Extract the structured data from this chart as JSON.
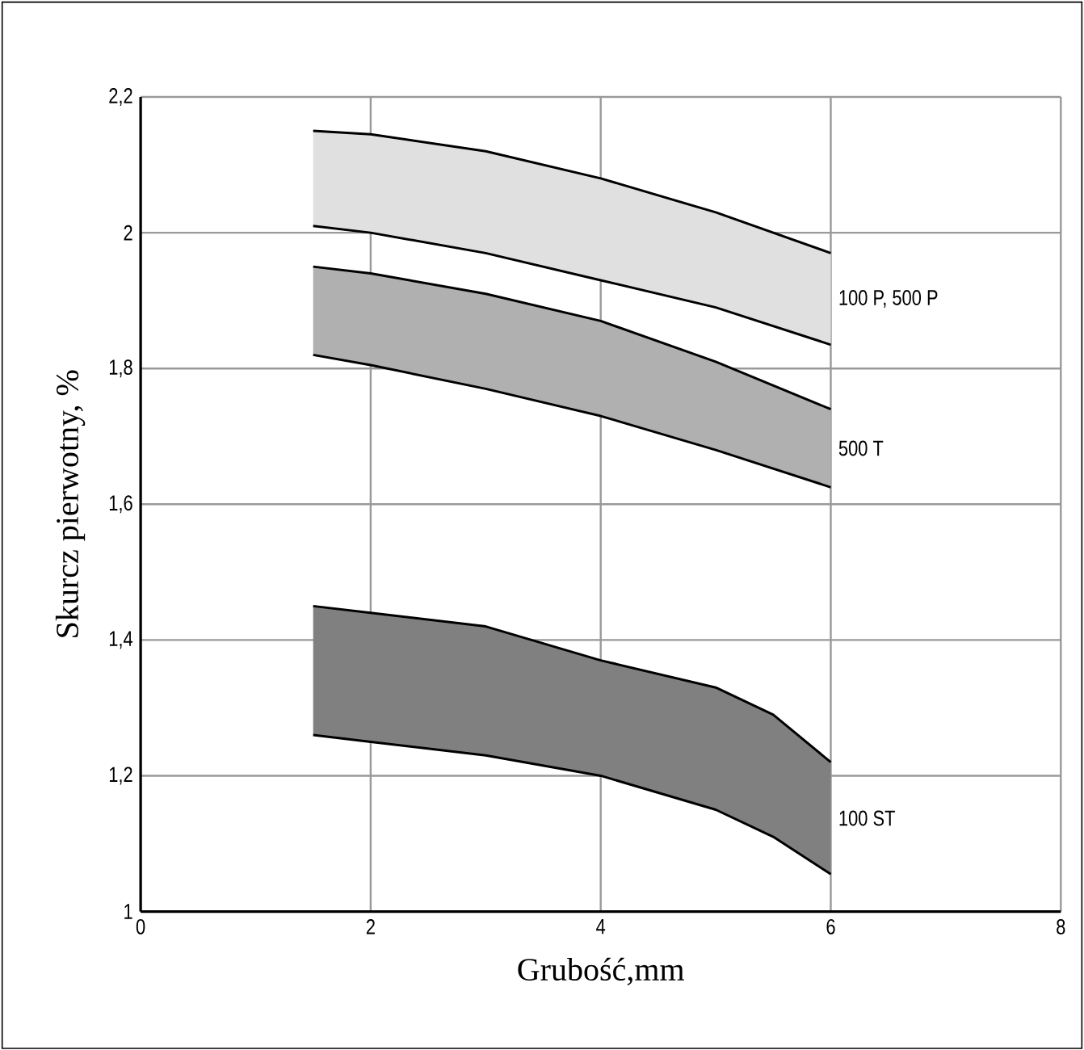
{
  "chart_data": {
    "type": "area",
    "xlabel": "Grubość,mm",
    "ylabel": "Skurcz pierwotny, %",
    "xlim": [
      0,
      8
    ],
    "ylim": [
      1,
      2.2
    ],
    "xticks": [
      0,
      2,
      4,
      6,
      8
    ],
    "yticks": [
      1,
      {
        "value": 1.2,
        "label": "1,2"
      },
      {
        "value": 1.4,
        "label": "1,4"
      },
      {
        "value": 1.6,
        "label": "1,6"
      },
      {
        "value": 1.8,
        "label": "1,8"
      },
      2,
      {
        "value": 2.2,
        "label": "2,2"
      }
    ],
    "grid": true,
    "series": [
      {
        "type": "line",
        "color": "#000000",
        "x": [
          1.5,
          2,
          3,
          4,
          5,
          6
        ],
        "values": [
          2.01,
          2.0,
          1.97,
          1.93,
          1.89,
          1.835
        ]
      },
      {
        "name": "100 P, 500 P",
        "color": "#e0e0e0",
        "x": [
          1.5,
          2,
          3,
          4,
          5,
          6
        ],
        "values": [
          2.15,
          2.145,
          2.12,
          2.08,
          2.03,
          1.97
        ]
      },
      {
        "type": "line",
        "color": "#000000",
        "x": [
          1.5,
          2,
          3,
          4,
          5,
          6
        ],
        "values": [
          1.82,
          1.805,
          1.77,
          1.73,
          1.68,
          1.625
        ]
      },
      {
        "name": "500 T",
        "color": "#b0b0b0",
        "x": [
          1.5,
          2,
          3,
          4,
          5,
          6
        ],
        "values": [
          1.95,
          1.94,
          1.91,
          1.87,
          1.81,
          1.74
        ]
      },
      {
        "type": "line",
        "color": "#000000",
        "x": [
          1.5,
          2,
          3,
          4,
          5,
          5.5,
          6
        ],
        "values": [
          1.26,
          1.25,
          1.23,
          1.2,
          1.15,
          1.11,
          1.055
        ]
      },
      {
        "name": "100 ST",
        "color": "#808080",
        "x": [
          1.5,
          2,
          3,
          4,
          5,
          5.5,
          6
        ],
        "values": [
          1.45,
          1.44,
          1.42,
          1.37,
          1.33,
          1.29,
          1.22
        ]
      }
    ]
  }
}
